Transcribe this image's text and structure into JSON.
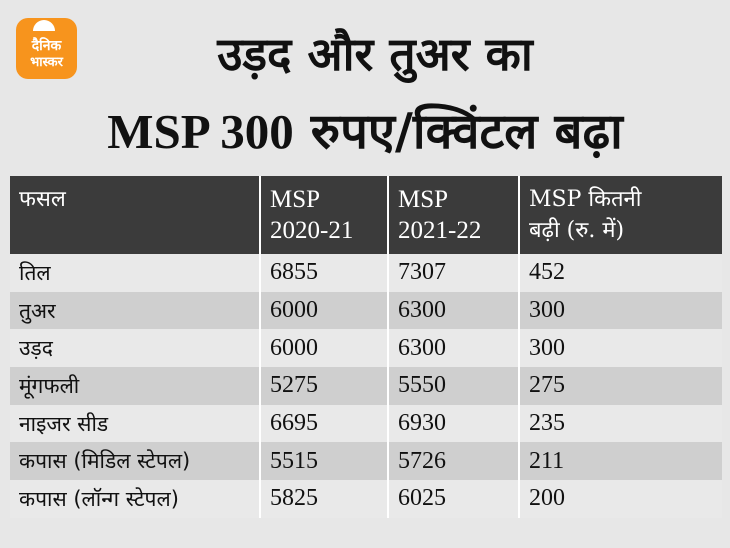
{
  "logo": {
    "line1": "दैनिक",
    "line2": "भास्कर"
  },
  "title": {
    "line1": "उड़द और तुअर का",
    "line2_prefix": "MSP 300",
    "line2_suffix": " रुपए/क्विंटल बढ़ा"
  },
  "table": {
    "headers": [
      [
        "फसल"
      ],
      [
        "MSP",
        "2020-21"
      ],
      [
        "MSP",
        "2021-22"
      ],
      [
        "MSP कितनी",
        "बढ़ी (रु. में)"
      ]
    ],
    "rows": [
      [
        "तिल",
        "6855",
        "7307",
        "452"
      ],
      [
        "तुअर",
        "6000",
        "6300",
        "300"
      ],
      [
        "उड़द",
        "6000",
        "6300",
        "300"
      ],
      [
        "मूंगफली",
        "5275",
        "5550",
        "275"
      ],
      [
        "नाइजर सीड",
        "6695",
        "6930",
        "235"
      ],
      [
        "कपास (मिडिल स्टेपल)",
        "5515",
        "5726",
        "211"
      ],
      [
        "कपास (लॉन्ग स्टेपल)",
        "5825",
        "6025",
        "200"
      ]
    ]
  }
}
